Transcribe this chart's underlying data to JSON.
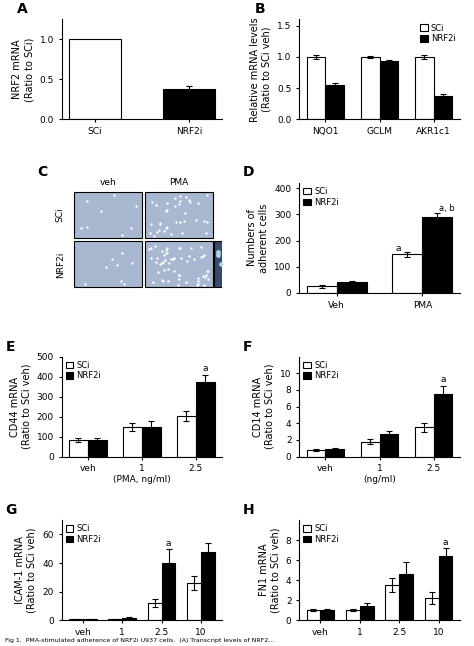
{
  "panel_A": {
    "categories": [
      "SCi",
      "NRF2i"
    ],
    "values": [
      1.0,
      0.38
    ],
    "errors": [
      0.0,
      0.04
    ],
    "colors": [
      "white",
      "black"
    ],
    "ylabel": "NRF2 mRNA\n(Ratio to SCi)",
    "ylim": [
      0,
      1.25
    ],
    "yticks": [
      0.0,
      0.5,
      1.0
    ],
    "label": "A"
  },
  "panel_B": {
    "groups": [
      "NQO1",
      "GCLM",
      "AKR1c1"
    ],
    "sci_values": [
      1.0,
      1.0,
      1.0
    ],
    "nrf2i_values": [
      0.55,
      0.93,
      0.38
    ],
    "sci_errors": [
      0.03,
      0.02,
      0.03
    ],
    "nrf2i_errors": [
      0.04,
      0.02,
      0.03
    ],
    "sci_color": "white",
    "nrf2i_color": "black",
    "ylabel": "Relative mRNA levels\n(Ratio to SCi veh)",
    "ylim": [
      0,
      1.6
    ],
    "yticks": [
      0.0,
      0.5,
      1.0,
      1.5
    ],
    "label": "B"
  },
  "panel_C": {
    "label": "C",
    "row_labels": [
      "SCi",
      "NRF2i"
    ],
    "col_labels": [
      "veh",
      "PMA"
    ],
    "bg_color": "#a8b8d0"
  },
  "panel_D": {
    "groups": [
      "Veh",
      "PMA"
    ],
    "sci_values": [
      25,
      148
    ],
    "nrf2i_values": [
      42,
      290
    ],
    "sci_errors": [
      5,
      10
    ],
    "nrf2i_errors": [
      5,
      15
    ],
    "sci_color": "white",
    "nrf2i_color": "black",
    "ylabel": "Numbers of\nadherent cells",
    "ylim": [
      0,
      420
    ],
    "yticks": [
      0,
      100,
      200,
      300,
      400
    ],
    "label": "D",
    "ann_sci_pma": "a",
    "ann_nrf2i_pma": "a, b"
  },
  "panel_E": {
    "groups": [
      "veh",
      "1",
      "2.5"
    ],
    "sci_values": [
      85,
      150,
      205
    ],
    "nrf2i_values": [
      85,
      150,
      375
    ],
    "sci_errors": [
      10,
      20,
      25
    ],
    "nrf2i_errors": [
      10,
      30,
      35
    ],
    "sci_color": "white",
    "nrf2i_color": "black",
    "ylabel": "CD44 mRNA\n(Ratio to SCi veh)",
    "ylim": [
      0,
      500
    ],
    "yticks": [
      0,
      100,
      200,
      300,
      400,
      500
    ],
    "xlabel": "(PMA, ng/ml)",
    "label": "E",
    "ann_nrf2i_2_5": "a"
  },
  "panel_F": {
    "groups": [
      "veh",
      "1",
      "2.5"
    ],
    "sci_values": [
      0.8,
      1.8,
      3.5
    ],
    "nrf2i_values": [
      0.9,
      2.7,
      7.5
    ],
    "sci_errors": [
      0.1,
      0.3,
      0.5
    ],
    "nrf2i_errors": [
      0.15,
      0.35,
      1.0
    ],
    "sci_color": "white",
    "nrf2i_color": "black",
    "ylabel": "CD14 mRNA\n(Ratio to SCi veh)",
    "ylim": [
      0,
      12
    ],
    "yticks": [
      0,
      2,
      4,
      6,
      8,
      10
    ],
    "xlabel": "(ng/ml)",
    "label": "F",
    "ann_nrf2i_2_5": "a"
  },
  "panel_G": {
    "groups": [
      "veh",
      "1",
      "2.5",
      "10"
    ],
    "sci_values": [
      0.5,
      0.7,
      12,
      26
    ],
    "nrf2i_values": [
      0.5,
      1.5,
      40,
      48
    ],
    "sci_errors": [
      0.1,
      0.3,
      3,
      5
    ],
    "nrf2i_errors": [
      0.1,
      1.0,
      10,
      6
    ],
    "sci_color": "white",
    "nrf2i_color": "black",
    "ylabel": "ICAM-1 mRNA\n(Ratio to SCi veh)",
    "ylim": [
      0,
      70
    ],
    "yticks": [
      0,
      20,
      40,
      60
    ],
    "label": "G",
    "ann_nrf2i_2_5": "a"
  },
  "panel_H": {
    "groups": [
      "veh",
      "1",
      "2.5",
      "10"
    ],
    "sci_values": [
      1.0,
      1.0,
      3.5,
      2.2
    ],
    "nrf2i_values": [
      1.0,
      1.4,
      4.6,
      6.4
    ],
    "sci_errors": [
      0.1,
      0.1,
      0.7,
      0.6
    ],
    "nrf2i_errors": [
      0.15,
      0.3,
      1.2,
      0.8
    ],
    "sci_color": "white",
    "nrf2i_color": "black",
    "ylabel": "FN1 mRNA\n(Ratio to SCi veh)",
    "ylim": [
      0,
      10
    ],
    "yticks": [
      0,
      2,
      4,
      6,
      8
    ],
    "label": "H",
    "ann_nrf2i_10": "a"
  },
  "edgecolor": "black",
  "bar_width": 0.35,
  "capsize": 2,
  "fontsize_label": 7,
  "fontsize_tick": 6.5,
  "fontsize_panel": 10
}
